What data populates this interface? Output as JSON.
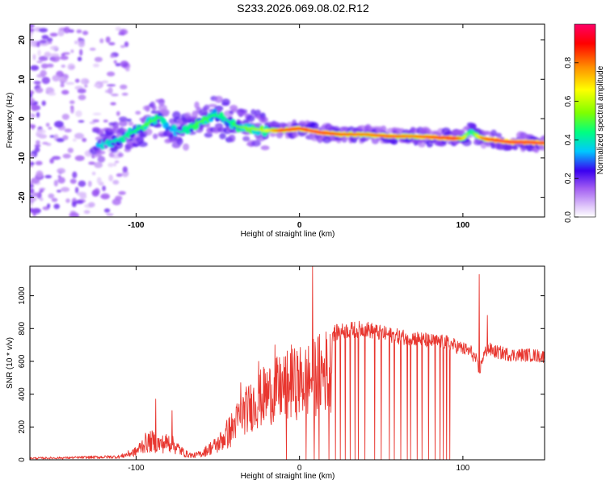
{
  "figure_title": "S233.2026.069.08.02.R12",
  "chart_data": [
    {
      "type": "heatmap",
      "title": "S233.2026.069.08.02.R12",
      "xlabel": "Height of straight line (km)",
      "ylabel": "Frequency (Hz)",
      "xlim": [
        -165,
        150
      ],
      "ylim": [
        -25,
        24
      ],
      "x_ticks": [
        -100,
        0,
        100
      ],
      "x_tick_labels": [
        "-100",
        "0",
        "100"
      ],
      "y_ticks": [
        20,
        10,
        0,
        -10,
        -20
      ],
      "y_tick_labels": [
        "20",
        "10",
        "0",
        "-10",
        "-20"
      ],
      "colorbar": {
        "label": "Normalized spectral amplitude",
        "range": [
          0,
          1
        ],
        "ticks": [
          0.0,
          0.2,
          0.4,
          0.6,
          0.8
        ],
        "tick_labels": [
          "0.0",
          "0.2",
          "0.4",
          "0.6",
          "0.8"
        ]
      },
      "ridge": {
        "height_km": [
          -125,
          -112,
          -100,
          -92,
          -85,
          -80,
          -72,
          -62,
          -52,
          -44,
          -38,
          -30,
          -22,
          -12,
          0,
          12,
          25,
          40,
          55,
          70,
          85,
          95,
          100,
          105,
          108,
          112,
          120,
          130,
          140,
          148
        ],
        "freq_hz": [
          -7,
          -5.5,
          -3,
          -1,
          0.5,
          -2.5,
          -3.5,
          -1,
          1,
          -0.5,
          -2,
          -2.5,
          -3,
          -3,
          -2.5,
          -3.5,
          -4,
          -4,
          -4.5,
          -4.5,
          -4.8,
          -5,
          -5,
          -3,
          -4.2,
          -5,
          -5.5,
          -6,
          -6,
          -6.2
        ],
        "peak_amplitude": [
          0.35,
          0.4,
          0.45,
          0.5,
          0.45,
          0.3,
          0.4,
          0.5,
          0.45,
          0.4,
          0.5,
          0.55,
          0.6,
          0.85,
          0.9,
          0.95,
          0.85,
          0.8,
          0.85,
          0.8,
          0.9,
          0.95,
          0.7,
          0.4,
          0.6,
          0.8,
          0.95,
          0.95,
          0.95,
          0.95
        ]
      }
    },
    {
      "type": "line",
      "xlabel": "Height of straight line (km)",
      "ylabel": "SNR (10 * v/v)",
      "xlim": [
        -165,
        150
      ],
      "ylim": [
        0,
        1180
      ],
      "x_ticks": [
        -100,
        0,
        100
      ],
      "x_tick_labels": [
        "-100",
        "0",
        "100"
      ],
      "y_ticks": [
        0,
        200,
        400,
        600,
        800,
        1000
      ],
      "y_tick_labels": [
        "0",
        "200",
        "400",
        "600",
        "800",
        "1000"
      ],
      "series": [
        {
          "name": "SNR",
          "color": "#e8362f",
          "envelope_x": [
            -165,
            -140,
            -110,
            -100,
            -95,
            -90,
            -85,
            -80,
            -75,
            -70,
            -65,
            -60,
            -55,
            -50,
            -45,
            -40,
            -35,
            -30,
            -25,
            -20,
            -15,
            -10,
            -5,
            0,
            5,
            10,
            15,
            20,
            25,
            30,
            40,
            50,
            60,
            70,
            80,
            90,
            95,
            100,
            105,
            108,
            110,
            112,
            115,
            120,
            130,
            140,
            150
          ],
          "envelope_y": [
            15,
            20,
            30,
            80,
            160,
            180,
            150,
            170,
            120,
            60,
            40,
            60,
            110,
            150,
            240,
            320,
            420,
            480,
            540,
            590,
            620,
            650,
            680,
            700,
            720,
            760,
            800,
            820,
            830,
            840,
            850,
            820,
            800,
            790,
            770,
            760,
            740,
            720,
            700,
            650,
            560,
            660,
            720,
            700,
            680,
            680,
            670
          ],
          "spikes": [
            [
              -88,
              370
            ],
            [
              -78,
              300
            ],
            [
              -36,
              470
            ],
            [
              -25,
              600
            ],
            [
              -15,
              700
            ],
            [
              -5,
              700
            ],
            [
              8,
              1180
            ],
            [
              110,
              1130
            ],
            [
              115,
              880
            ]
          ],
          "dropouts_x": [
            -8,
            4,
            9,
            12,
            18,
            22,
            25,
            28,
            31,
            34,
            36,
            40,
            46,
            50,
            55,
            58,
            62,
            66,
            68,
            72,
            75,
            79,
            83,
            86,
            88,
            90,
            92
          ]
        }
      ]
    }
  ]
}
